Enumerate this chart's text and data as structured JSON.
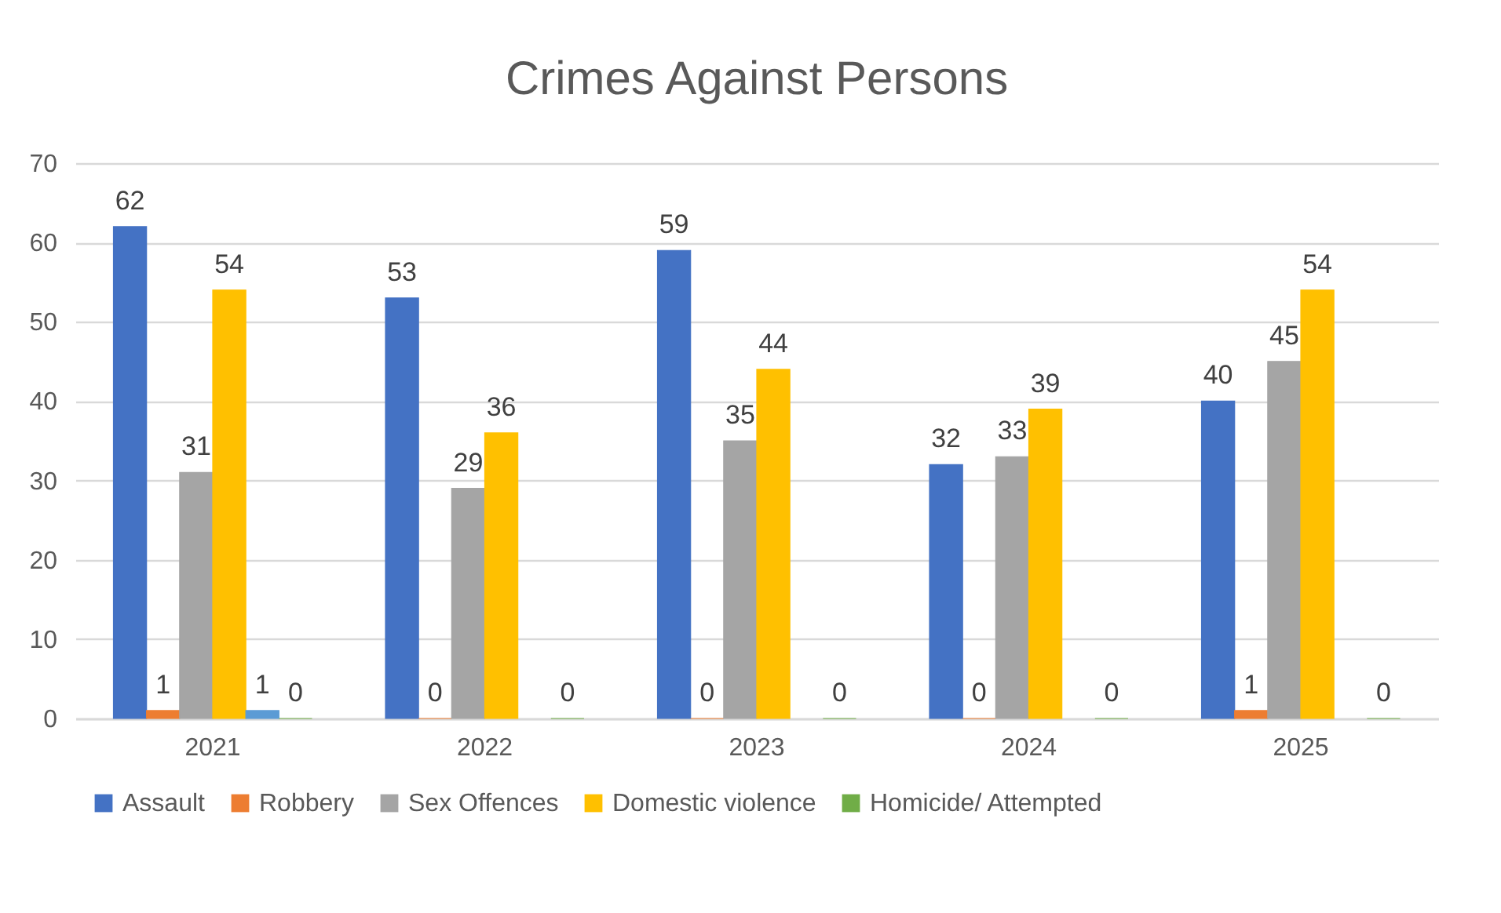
{
  "chart_data": {
    "type": "bar",
    "title": "Crimes Against Persons",
    "categories": [
      "2021",
      "2022",
      "2023",
      "2024",
      "2025"
    ],
    "series": [
      {
        "name": "Assault",
        "color": "#4472c4",
        "values": [
          62,
          53,
          59,
          32,
          40
        ]
      },
      {
        "name": "Robbery",
        "color": "#ed7d31",
        "values": [
          1,
          0,
          0,
          0,
          1
        ]
      },
      {
        "name": "Sex Offences",
        "color": "#a5a5a5",
        "values": [
          31,
          29,
          35,
          33,
          45
        ]
      },
      {
        "name": "Domestic violence",
        "color": "#ffc000",
        "values": [
          54,
          36,
          44,
          39,
          54
        ]
      },
      {
        "color": "#5b9bd5",
        "values": [
          1,
          null,
          null,
          null,
          null
        ]
      },
      {
        "name": "Homicide/ Attempted",
        "color": "#70ad47",
        "values": [
          0,
          0,
          0,
          0,
          0
        ]
      }
    ],
    "ylim": [
      0,
      70
    ],
    "yticks": [
      0,
      10,
      20,
      30,
      40,
      50,
      60,
      70
    ],
    "grid": "y",
    "legend": "bottom",
    "data_labels": true
  }
}
